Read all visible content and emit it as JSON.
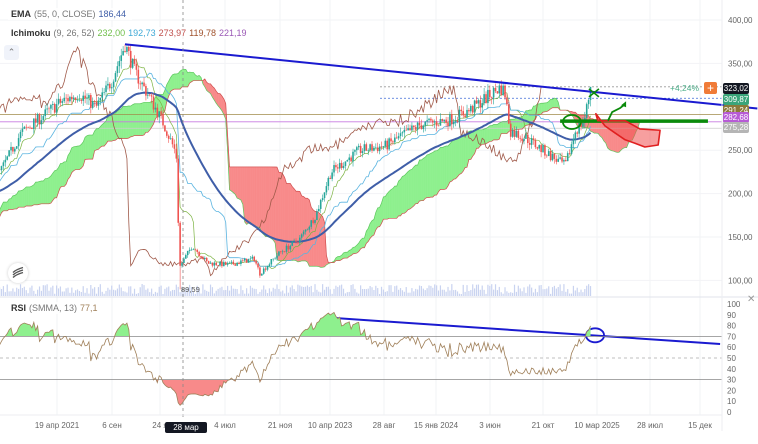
{
  "legend": {
    "ema": {
      "name": "EMA",
      "params": "(55, 0, CLOSE)",
      "value": "186,44",
      "color": "#3f5ea8"
    },
    "ichimoku": {
      "name": "Ichimoku",
      "params": "(9, 26, 52)",
      "values": [
        "232,00",
        "192,73",
        "273,97",
        "119,78",
        "221,19"
      ],
      "colors": [
        "#6fbf4a",
        "#3fa9d6",
        "#c0504d",
        "#a0522d",
        "#9b59b6"
      ]
    },
    "rsi": {
      "name": "RSI",
      "params": "(SMMA, 13)",
      "value": "77,1",
      "color": "#a0805a"
    }
  },
  "price_axis": [
    "400,00",
    "350,00",
    "250,00",
    "200,00",
    "150,00",
    "100,00"
  ],
  "rsi_axis": [
    "100",
    "90",
    "80",
    "70",
    "60",
    "50",
    "40",
    "30",
    "20",
    "10",
    "0"
  ],
  "time_axis": [
    "19 апр 2021",
    "6 сен",
    "24 я",
    "4 июл",
    "21 ноя",
    "10 апр 2023",
    "28 авг",
    "15 янв 2024",
    "3 июн",
    "21 окт",
    "10 мар 2025",
    "28 июл",
    "15 дек"
  ],
  "crosshair": {
    "date_label": "28 мар 2022",
    "low_label": "89,59"
  },
  "price_tags": [
    {
      "value": "323,02",
      "color": "#131722"
    },
    {
      "value": "309,87",
      "color": "#3aa57a"
    },
    {
      "value": "291,24",
      "color": "#8c7a3a"
    },
    {
      "value": "282,68",
      "color": "#b75bd6"
    },
    {
      "value": "275,28",
      "color": "#b5b5b5"
    }
  ],
  "change_label": "+4,24%",
  "icons": [
    "chevron-up-icon",
    "tradingview-logo-icon",
    "plus-icon",
    "close-icon"
  ],
  "chart_data": {
    "type": "candlestick",
    "ylim": [
      90,
      415
    ],
    "rsi_ylim": [
      0,
      100
    ],
    "rsi_levels": [
      70,
      50,
      30
    ],
    "grid": true,
    "price_keypoints": [
      [
        "2019-09-01",
        200
      ],
      [
        "2020-03-20",
        150
      ],
      [
        "2020-08-01",
        210
      ],
      [
        "2020-11-20",
        225
      ],
      [
        "2021-01-15",
        270
      ],
      [
        "2021-04-27",
        305
      ],
      [
        "2021-06-15",
        315
      ],
      [
        "2021-08-01",
        300
      ],
      [
        "2021-09-10",
        330
      ],
      [
        "2021-10-15",
        372
      ],
      [
        "2021-11-10",
        340
      ],
      [
        "2021-12-20",
        310
      ],
      [
        "2022-01-25",
        280
      ],
      [
        "2022-02-23",
        250
      ],
      [
        "2022-02-28",
        240
      ],
      [
        "2022-03-07",
        115
      ],
      [
        "2022-04-10",
        140
      ],
      [
        "2022-05-20",
        120
      ],
      [
        "2022-07-15",
        118
      ],
      [
        "2022-09-20",
        125
      ],
      [
        "2022-10-05",
        108
      ],
      [
        "2022-11-21",
        130
      ],
      [
        "2023-01-18",
        148
      ],
      [
        "2023-03-01",
        175
      ],
      [
        "2023-04-10",
        225
      ],
      [
        "2023-06-25",
        250
      ],
      [
        "2023-09-01",
        255
      ],
      [
        "2023-11-30",
        279
      ],
      [
        "2024-02-15",
        285
      ],
      [
        "2024-04-10",
        296
      ],
      [
        "2024-06-05",
        315
      ],
      [
        "2024-06-28",
        322
      ],
      [
        "2024-07-10",
        318
      ],
      [
        "2024-07-25",
        272
      ],
      [
        "2024-09-01",
        265
      ],
      [
        "2024-10-12",
        252
      ],
      [
        "2024-11-20",
        240
      ],
      [
        "2024-12-17",
        232
      ],
      [
        "2025-01-12",
        272
      ],
      [
        "2025-02-05",
        285
      ],
      [
        "2025-02-22",
        323
      ]
    ],
    "crash_low": {
      "date": "2022-03-07",
      "value": 89.59
    },
    "last_price": 323.02,
    "horizontal_levels": [
      {
        "value": 323.02,
        "style": "dotted",
        "color": "#999999"
      },
      {
        "value": 309.87,
        "style": "dotted",
        "color": "#3f6bd6"
      },
      {
        "value": 291.24,
        "style": "solid",
        "color": "#a08c4a"
      },
      {
        "value": 282.68,
        "style": "solid",
        "color": "#c77be0"
      },
      {
        "value": 275.28,
        "style": "solid",
        "color": "#cccccc"
      }
    ],
    "drawings": {
      "trendline": {
        "color": "#1a1ad0",
        "points": [
          [
            "2021-10-15",
            372
          ],
          [
            "2026-05-06",
            298
          ]
        ]
      },
      "support_line": {
        "color": "#0a8a0a",
        "points": [
          [
            "2024-12-03",
            283.5
          ],
          [
            "2025-12-27",
            283.5
          ]
        ]
      },
      "target_zone": {
        "color": "#e02020",
        "points": [
          [
            "2025-03-07",
            292
          ],
          [
            "2025-03-12",
            284
          ],
          [
            "2025-05-23",
            284
          ],
          [
            "2025-07-01",
            274.5
          ],
          [
            "2025-08-23",
            273
          ],
          [
            "2025-08-18",
            256
          ],
          [
            "2025-07-14",
            253.7
          ],
          [
            "2025-06-18",
            258
          ],
          [
            "2025-05-23",
            262
          ],
          [
            "2025-04-26",
            270
          ],
          [
            "2025-03-31",
            278
          ]
        ]
      },
      "up_arrow": {
        "color": "#0a8a0a",
        "points": [
          [
            "2025-04-08",
            284
          ],
          [
            "2025-04-19",
            294
          ],
          [
            "2025-05-10",
            298.6
          ],
          [
            "2025-05-23",
            303
          ]
        ]
      },
      "circle": {
        "color": "#0a8a0a",
        "center": [
          "2025-01-03",
          282.5
        ]
      },
      "cross_mark": {
        "color": "#0a8a0a",
        "center": [
          "2025-03-02",
          316
        ]
      },
      "rsi_trendline": {
        "color": "#1a1ad0",
        "points": [
          [
            "2023-04-20",
            87
          ],
          [
            "2026-01-28",
            63
          ]
        ]
      },
      "rsi_circle": {
        "color": "#1a1ad0",
        "center": [
          "2025-03-05",
          71
        ]
      }
    }
  }
}
